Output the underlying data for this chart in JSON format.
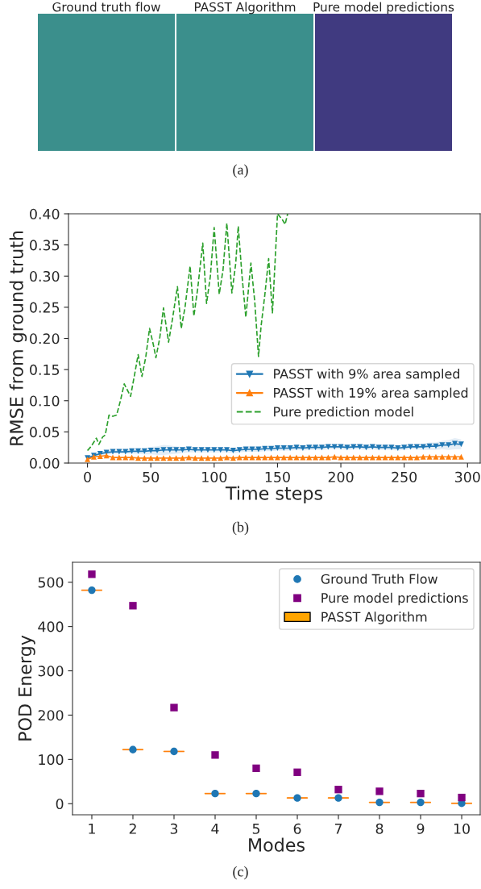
{
  "chart_data": [
    {
      "type": "other",
      "annotations": [
        "Ground truth flow",
        "PASST Algorithm",
        "Pure model predictions",
        "(a)"
      ]
    },
    {
      "type": "line",
      "xlabel": "Time steps",
      "ylabel": "RMSE from ground truth",
      "xlim": [
        -15,
        310
      ],
      "ylim": [
        0,
        0.4
      ],
      "xticks": [
        0,
        50,
        100,
        150,
        200,
        250,
        300
      ],
      "yticks": [
        {
          "value": 0,
          "label": "0.00"
        },
        {
          "value": 0.05,
          "label": "0.05"
        },
        {
          "value": 0.1,
          "label": "0.10"
        },
        {
          "value": 0.15,
          "label": "0.15"
        },
        {
          "value": 0.2,
          "label": "0.20"
        },
        {
          "value": 0.25,
          "label": "0.25"
        },
        {
          "value": 0.3,
          "label": "0.30"
        },
        {
          "value": 0.35,
          "label": "0.35"
        },
        {
          "value": 0.4,
          "label": "0.40"
        }
      ],
      "legend": "lower right",
      "grid": false,
      "annotations": [
        "(b)"
      ],
      "series": [
        {
          "name": "PASST with 9% area sampled",
          "color": "#1f77b4",
          "marker": "triangle_down",
          "line_style": "solid",
          "x": [
            0,
            5,
            10,
            15,
            20,
            25,
            30,
            35,
            40,
            45,
            50,
            55,
            60,
            65,
            70,
            75,
            80,
            85,
            90,
            95,
            100,
            105,
            110,
            115,
            120,
            125,
            130,
            135,
            140,
            145,
            150,
            155,
            160,
            165,
            170,
            175,
            180,
            185,
            190,
            195,
            200,
            205,
            210,
            215,
            220,
            225,
            230,
            235,
            240,
            245,
            250,
            255,
            260,
            265,
            270,
            275,
            280,
            285,
            290,
            295
          ],
          "values": [
            0.008,
            0.012,
            0.015,
            0.017,
            0.018,
            0.018,
            0.018,
            0.019,
            0.019,
            0.019,
            0.02,
            0.02,
            0.021,
            0.021,
            0.021,
            0.021,
            0.022,
            0.021,
            0.021,
            0.021,
            0.021,
            0.021,
            0.021,
            0.02,
            0.021,
            0.022,
            0.022,
            0.022,
            0.023,
            0.023,
            0.024,
            0.024,
            0.024,
            0.025,
            0.024,
            0.025,
            0.025,
            0.025,
            0.026,
            0.026,
            0.026,
            0.025,
            0.026,
            0.026,
            0.025,
            0.026,
            0.025,
            0.025,
            0.025,
            0.024,
            0.025,
            0.026,
            0.026,
            0.026,
            0.027,
            0.027,
            0.029,
            0.029,
            0.031,
            0.03
          ],
          "lower": [
            0.006,
            0.009,
            0.012,
            0.014,
            0.015,
            0.015,
            0.015,
            0.015,
            0.015,
            0.014,
            0.014,
            0.013,
            0.013,
            0.014,
            0.015,
            0.016,
            0.017,
            0.017,
            0.017,
            0.017,
            0.017,
            0.017,
            0.017,
            0.016,
            0.017,
            0.018,
            0.018,
            0.018,
            0.019,
            0.019,
            0.02,
            0.02,
            0.02,
            0.021,
            0.02,
            0.021,
            0.021,
            0.021,
            0.022,
            0.022,
            0.022,
            0.021,
            0.022,
            0.022,
            0.021,
            0.022,
            0.021,
            0.021,
            0.021,
            0.02,
            0.021,
            0.022,
            0.022,
            0.021,
            0.021,
            0.021,
            0.022,
            0.021,
            0.022,
            0.022
          ],
          "upper": [
            0.01,
            0.015,
            0.018,
            0.02,
            0.021,
            0.021,
            0.021,
            0.023,
            0.023,
            0.024,
            0.026,
            0.027,
            0.029,
            0.028,
            0.027,
            0.026,
            0.027,
            0.025,
            0.025,
            0.025,
            0.025,
            0.025,
            0.025,
            0.024,
            0.025,
            0.026,
            0.026,
            0.026,
            0.027,
            0.027,
            0.028,
            0.028,
            0.028,
            0.029,
            0.028,
            0.029,
            0.029,
            0.029,
            0.03,
            0.03,
            0.03,
            0.029,
            0.03,
            0.03,
            0.029,
            0.03,
            0.029,
            0.029,
            0.029,
            0.028,
            0.029,
            0.03,
            0.03,
            0.031,
            0.033,
            0.033,
            0.036,
            0.037,
            0.04,
            0.038
          ]
        },
        {
          "name": "PASST with 19% area sampled",
          "color": "#ff7f0e",
          "marker": "triangle",
          "line_style": "solid",
          "x": [
            0,
            5,
            10,
            15,
            20,
            25,
            30,
            35,
            40,
            45,
            50,
            55,
            60,
            65,
            70,
            75,
            80,
            85,
            90,
            95,
            100,
            105,
            110,
            115,
            120,
            125,
            130,
            135,
            140,
            145,
            150,
            155,
            160,
            165,
            170,
            175,
            180,
            185,
            190,
            195,
            200,
            205,
            210,
            215,
            220,
            225,
            230,
            235,
            240,
            245,
            250,
            255,
            260,
            265,
            270,
            275,
            280,
            285,
            290,
            295
          ],
          "values": [
            0.006,
            0.01,
            0.011,
            0.012,
            0.009,
            0.009,
            0.009,
            0.009,
            0.008,
            0.008,
            0.008,
            0.008,
            0.008,
            0.008,
            0.008,
            0.008,
            0.009,
            0.008,
            0.008,
            0.008,
            0.008,
            0.008,
            0.009,
            0.008,
            0.009,
            0.009,
            0.009,
            0.009,
            0.009,
            0.009,
            0.009,
            0.009,
            0.009,
            0.009,
            0.009,
            0.009,
            0.009,
            0.009,
            0.009,
            0.01,
            0.009,
            0.009,
            0.009,
            0.009,
            0.009,
            0.009,
            0.009,
            0.009,
            0.009,
            0.009,
            0.009,
            0.009,
            0.009,
            0.01,
            0.01,
            0.01,
            0.01,
            0.01,
            0.01,
            0.01
          ]
        },
        {
          "name": "Pure prediction model",
          "color": "#2ca02c",
          "marker": "none",
          "line_style": "dashed",
          "x": [
            0,
            3,
            7,
            9,
            12,
            14,
            17,
            20,
            23,
            26,
            29,
            34,
            37,
            40,
            43,
            46,
            49,
            52,
            54,
            57,
            60,
            64,
            67,
            71,
            74,
            77,
            81,
            84,
            87,
            91,
            94,
            97,
            100,
            104,
            107,
            110,
            114,
            117,
            119,
            122,
            125,
            129,
            132,
            135,
            137,
            140,
            143,
            146,
            148,
            150,
            154,
            156,
            158
          ],
          "values": [
            0.02,
            0.027,
            0.04,
            0.03,
            0.042,
            0.045,
            0.077,
            0.075,
            0.077,
            0.1,
            0.127,
            0.107,
            0.14,
            0.174,
            0.139,
            0.17,
            0.216,
            0.19,
            0.169,
            0.2,
            0.249,
            0.194,
            0.23,
            0.283,
            0.216,
            0.25,
            0.316,
            0.236,
            0.28,
            0.353,
            0.256,
            0.3,
            0.378,
            0.271,
            0.31,
            0.385,
            0.273,
            0.32,
            0.38,
            0.3,
            0.234,
            0.321,
            0.26,
            0.171,
            0.219,
            0.27,
            0.328,
            0.241,
            0.32,
            0.4,
            0.39,
            0.383,
            0.4
          ]
        }
      ]
    },
    {
      "type": "scatter",
      "xlabel": "Modes",
      "ylabel": "POD Energy",
      "categories": [
        "1",
        "2",
        "3",
        "4",
        "5",
        "6",
        "7",
        "8",
        "9",
        "10"
      ],
      "ylim": [
        -25,
        545
      ],
      "yticks": [
        0,
        100,
        200,
        300,
        400,
        500
      ],
      "legend": "top right",
      "grid": false,
      "annotations": [
        "(c)"
      ],
      "series": [
        {
          "name": "Ground Truth Flow",
          "type": "scatter",
          "color": "#1f77b4",
          "marker": "circle",
          "values": [
            482,
            122,
            118,
            23,
            23,
            13,
            13,
            3,
            3,
            1
          ]
        },
        {
          "name": "Pure model predictions",
          "type": "scatter",
          "color": "#800080",
          "marker": "square",
          "values": [
            518,
            447,
            217,
            110,
            80,
            71,
            32,
            28,
            23,
            14
          ]
        },
        {
          "name": "PASST Algorithm",
          "type": "box",
          "color": "#ffa500",
          "boxes": [
            {
              "low": 482,
              "q1": 482,
              "median": 482,
              "q3": 482,
              "high": 482
            },
            {
              "low": 122,
              "q1": 122,
              "median": 122,
              "q3": 122,
              "high": 122
            },
            {
              "low": 118,
              "q1": 118,
              "median": 118,
              "q3": 118,
              "high": 118
            },
            {
              "low": 23,
              "q1": 23,
              "median": 23,
              "q3": 23,
              "high": 23
            },
            {
              "low": 23,
              "q1": 23,
              "median": 23,
              "q3": 23,
              "high": 23
            },
            {
              "low": 13,
              "q1": 13,
              "median": 13,
              "q3": 13,
              "high": 13
            },
            {
              "low": 13,
              "q1": 13,
              "median": 13,
              "q3": 13,
              "high": 13
            },
            {
              "low": 3,
              "q1": 3,
              "median": 3,
              "q3": 3,
              "high": 3
            },
            {
              "low": 3,
              "q1": 3,
              "median": 3,
              "q3": 3,
              "high": 3
            },
            {
              "low": 1,
              "q1": 1,
              "median": 1,
              "q3": 1,
              "high": 1
            }
          ]
        }
      ]
    }
  ]
}
